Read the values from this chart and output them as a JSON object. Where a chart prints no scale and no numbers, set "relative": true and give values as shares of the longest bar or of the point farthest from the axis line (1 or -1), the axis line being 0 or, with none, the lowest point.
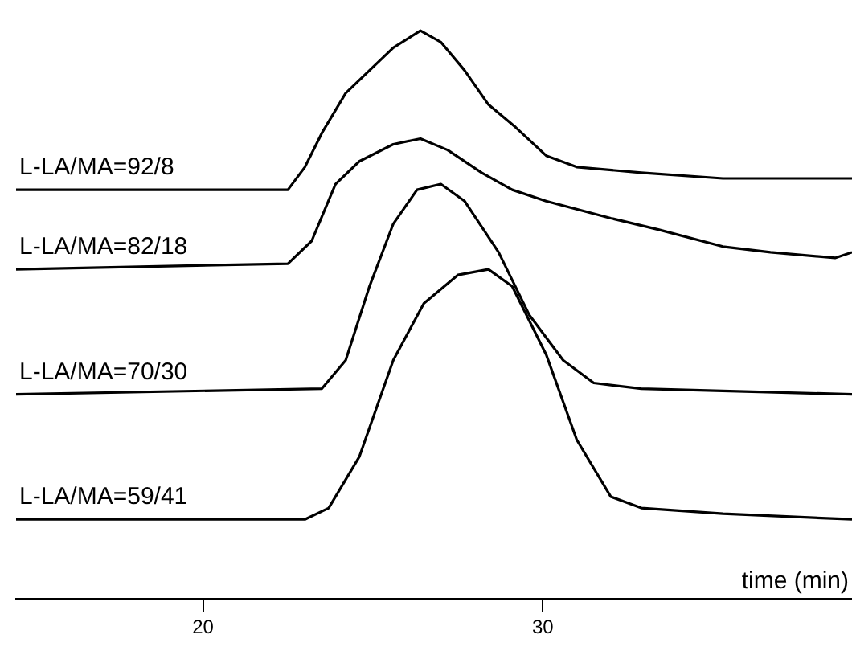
{
  "chart_data": {
    "type": "line",
    "relative": true,
    "xlabel": "time (min)",
    "xlim": [
      14.5,
      39.1
    ],
    "xticks": [
      20,
      30
    ],
    "grid": false,
    "legend": false,
    "marker": "none",
    "line_style": "solid",
    "tick_labels": "x",
    "series": [
      {
        "name": "L-LA/MA=92/8",
        "color": "#000000",
        "x": [
          14.5,
          22.5,
          23,
          23.5,
          24.2,
          24.9,
          25.6,
          26.4,
          27,
          27.7,
          28.4,
          29.2,
          30.1,
          31,
          32.9,
          35.3,
          39.1
        ],
        "values": [
          0.72,
          0.72,
          0.76,
          0.82,
          0.89,
          0.93,
          0.97,
          1,
          0.98,
          0.93,
          0.87,
          0.83,
          0.78,
          0.76,
          0.75,
          0.74,
          0.74
        ]
      },
      {
        "name": "L-LA/MA=82/18",
        "color": "#000000",
        "x": [
          14.5,
          22.5,
          23.2,
          23.9,
          24.6,
          25.6,
          26.4,
          27.2,
          28.2,
          29.1,
          30.1,
          32,
          33.4,
          35.3,
          36.7,
          38.6,
          39.1
        ],
        "values": [
          0.58,
          0.59,
          0.63,
          0.73,
          0.77,
          0.8,
          0.81,
          0.79,
          0.75,
          0.72,
          0.7,
          0.67,
          0.65,
          0.62,
          0.61,
          0.6,
          0.61
        ]
      },
      {
        "name": "L-LA/MA=70/30",
        "color": "#000000",
        "x": [
          14.5,
          23.5,
          24.2,
          24.9,
          25.6,
          26.3,
          27,
          27.7,
          28.7,
          29.6,
          30.6,
          31.5,
          32.9,
          39.1
        ],
        "values": [
          0.36,
          0.37,
          0.42,
          0.55,
          0.66,
          0.72,
          0.73,
          0.7,
          0.61,
          0.5,
          0.42,
          0.38,
          0.37,
          0.36
        ]
      },
      {
        "name": "L-LA/MA=59/41",
        "color": "#000000",
        "x": [
          14.5,
          23,
          23.7,
          24.6,
          25.6,
          26.5,
          27.5,
          28.4,
          29.1,
          30.1,
          31,
          32,
          32.9,
          35.3,
          39.1
        ],
        "values": [
          0.14,
          0.14,
          0.16,
          0.25,
          0.42,
          0.52,
          0.57,
          0.58,
          0.55,
          0.43,
          0.28,
          0.18,
          0.16,
          0.15,
          0.14
        ]
      }
    ]
  }
}
